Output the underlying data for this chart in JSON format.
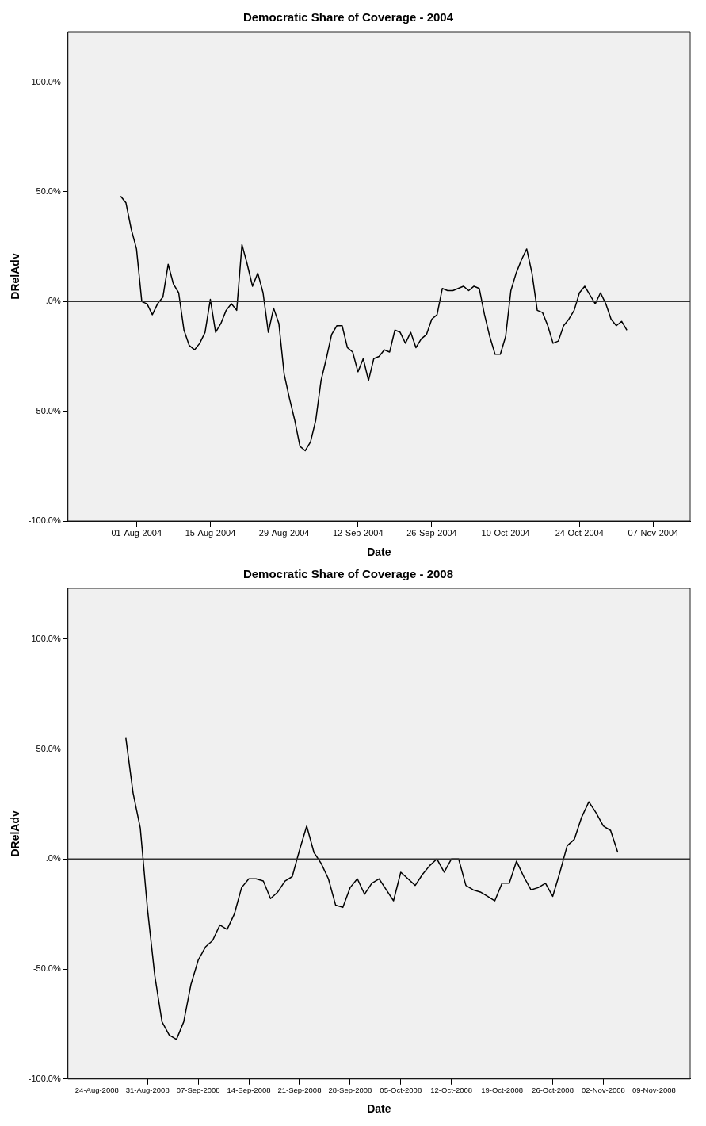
{
  "chart_data": [
    {
      "type": "line",
      "title": "Democratic Share of Coverage - 2004",
      "xlabel": "Date",
      "ylabel": "DRelAdv",
      "x": [
        "2004-07-29",
        "2004-07-30",
        "2004-07-31",
        "2004-08-01",
        "2004-08-02",
        "2004-08-03",
        "2004-08-04",
        "2004-08-05",
        "2004-08-06",
        "2004-08-07",
        "2004-08-08",
        "2004-08-09",
        "2004-08-10",
        "2004-08-11",
        "2004-08-12",
        "2004-08-13",
        "2004-08-14",
        "2004-08-15",
        "2004-08-16",
        "2004-08-17",
        "2004-08-18",
        "2004-08-19",
        "2004-08-20",
        "2004-08-21",
        "2004-08-22",
        "2004-08-23",
        "2004-08-24",
        "2004-08-25",
        "2004-08-26",
        "2004-08-27",
        "2004-08-28",
        "2004-08-29",
        "2004-08-30",
        "2004-08-31",
        "2004-09-01",
        "2004-09-02",
        "2004-09-03",
        "2004-09-04",
        "2004-09-05",
        "2004-09-06",
        "2004-09-07",
        "2004-09-08",
        "2004-09-09",
        "2004-09-10",
        "2004-09-11",
        "2004-09-12",
        "2004-09-13",
        "2004-09-14",
        "2004-09-15",
        "2004-09-16",
        "2004-09-17",
        "2004-09-18",
        "2004-09-19",
        "2004-09-20",
        "2004-09-21",
        "2004-09-22",
        "2004-09-23",
        "2004-09-24",
        "2004-09-25",
        "2004-09-26",
        "2004-09-27",
        "2004-09-28",
        "2004-09-29",
        "2004-09-30",
        "2004-10-01",
        "2004-10-02",
        "2004-10-03",
        "2004-10-04",
        "2004-10-05",
        "2004-10-06",
        "2004-10-07",
        "2004-10-08",
        "2004-10-09",
        "2004-10-10",
        "2004-10-11",
        "2004-10-12",
        "2004-10-13",
        "2004-10-14",
        "2004-10-15",
        "2004-10-16",
        "2004-10-17",
        "2004-10-18",
        "2004-10-19",
        "2004-10-20",
        "2004-10-21",
        "2004-10-22",
        "2004-10-23",
        "2004-10-24",
        "2004-10-25",
        "2004-10-26",
        "2004-10-27",
        "2004-10-28",
        "2004-10-29",
        "2004-10-30",
        "2004-10-31",
        "2004-11-01",
        "2004-11-02"
      ],
      "series": [
        {
          "color": "#000000",
          "values": [
            48,
            45,
            33,
            24,
            0,
            -1,
            -6,
            -1,
            2,
            17,
            8,
            4,
            -13,
            -20,
            -22,
            -19,
            -14,
            1,
            -14,
            -10,
            -4,
            -1,
            -4,
            26,
            17,
            7,
            13,
            4,
            -14,
            -3,
            -10,
            -33,
            -44,
            -54,
            -66,
            -68,
            -64,
            -54,
            -36,
            -26,
            -15,
            -11,
            -11,
            -21,
            -23,
            -32,
            -26,
            -36,
            -26,
            -25,
            -22,
            -23,
            -13,
            -14,
            -19,
            -14,
            -21,
            -17,
            -15,
            -8,
            -6,
            6,
            5,
            5,
            6,
            7,
            5,
            7,
            6,
            -6,
            -16,
            -24,
            -24,
            -16,
            5,
            13,
            19,
            24,
            13,
            -4,
            -5,
            -11,
            -19,
            -18,
            -11,
            -8,
            -4,
            4,
            7,
            3,
            -1,
            4,
            -1,
            -8,
            -11,
            -9,
            -13
          ]
        }
      ],
      "xlim": [
        "2004-07-19",
        "2004-11-14"
      ],
      "xticks": [
        {
          "value": "2004-08-01",
          "label": "01-Aug-2004"
        },
        {
          "value": "2004-08-15",
          "label": "15-Aug-2004"
        },
        {
          "value": "2004-08-29",
          "label": "29-Aug-2004"
        },
        {
          "value": "2004-09-12",
          "label": "12-Sep-2004"
        },
        {
          "value": "2004-09-26",
          "label": "26-Sep-2004"
        },
        {
          "value": "2004-10-10",
          "label": "10-Oct-2004"
        },
        {
          "value": "2004-10-24",
          "label": "24-Oct-2004"
        },
        {
          "value": "2004-11-07",
          "label": "07-Nov-2004"
        }
      ],
      "ylim": [
        -100,
        123
      ],
      "yticks": [
        {
          "value": -100,
          "label": "-100.0%"
        },
        {
          "value": -50,
          "label": "-50.0%"
        },
        {
          "value": 0,
          "label": ".0%"
        },
        {
          "value": 50,
          "label": "50.0%"
        },
        {
          "value": 100,
          "label": "100.0%"
        }
      ],
      "ref_lines": [
        {
          "axis": "y",
          "value": 0,
          "color": "#333333"
        }
      ]
    },
    {
      "type": "line",
      "title": "Democratic Share of Coverage - 2008",
      "xlabel": "Date",
      "ylabel": "DRelAdv",
      "x": [
        "2008-08-28",
        "2008-08-29",
        "2008-08-30",
        "2008-08-31",
        "2008-09-01",
        "2008-09-02",
        "2008-09-03",
        "2008-09-04",
        "2008-09-05",
        "2008-09-06",
        "2008-09-07",
        "2008-09-08",
        "2008-09-09",
        "2008-09-10",
        "2008-09-11",
        "2008-09-12",
        "2008-09-13",
        "2008-09-14",
        "2008-09-15",
        "2008-09-16",
        "2008-09-17",
        "2008-09-18",
        "2008-09-19",
        "2008-09-20",
        "2008-09-21",
        "2008-09-22",
        "2008-09-23",
        "2008-09-24",
        "2008-09-25",
        "2008-09-26",
        "2008-09-27",
        "2008-09-28",
        "2008-09-29",
        "2008-09-30",
        "2008-10-01",
        "2008-10-02",
        "2008-10-03",
        "2008-10-04",
        "2008-10-05",
        "2008-10-06",
        "2008-10-07",
        "2008-10-08",
        "2008-10-09",
        "2008-10-10",
        "2008-10-11",
        "2008-10-12",
        "2008-10-13",
        "2008-10-14",
        "2008-10-15",
        "2008-10-16",
        "2008-10-17",
        "2008-10-18",
        "2008-10-19",
        "2008-10-20",
        "2008-10-21",
        "2008-10-22",
        "2008-10-23",
        "2008-10-24",
        "2008-10-25",
        "2008-10-26",
        "2008-10-27",
        "2008-10-28",
        "2008-10-29",
        "2008-10-30",
        "2008-10-31",
        "2008-11-01",
        "2008-11-02",
        "2008-11-03",
        "2008-11-04"
      ],
      "series": [
        {
          "color": "#000000",
          "values": [
            55,
            30,
            14,
            -23,
            -53,
            -74,
            -80,
            -82,
            -74,
            -57,
            -46,
            -40,
            -37,
            -30,
            -32,
            -25,
            -13,
            -9,
            -9,
            -10,
            -18,
            -15,
            -10,
            -8,
            4,
            15,
            3,
            -2,
            -9,
            -21,
            -22,
            -13,
            -9,
            -16,
            -11,
            -9,
            -14,
            -19,
            -6,
            -9,
            -12,
            -7,
            -3,
            0,
            -6,
            0,
            0,
            -12,
            -14,
            -15,
            -17,
            -19,
            -11,
            -11,
            -1,
            -8,
            -14,
            -13,
            -11,
            -17,
            -6,
            6,
            9,
            19,
            26,
            21,
            15,
            13,
            3
          ]
        }
      ],
      "xlim": [
        "2008-08-20",
        "2008-11-14"
      ],
      "xticks": [
        {
          "value": "2008-08-24",
          "label": "24-Aug-2008"
        },
        {
          "value": "2008-08-31",
          "label": "31-Aug-2008"
        },
        {
          "value": "2008-09-07",
          "label": "07-Sep-2008"
        },
        {
          "value": "2008-09-14",
          "label": "14-Sep-2008"
        },
        {
          "value": "2008-09-21",
          "label": "21-Sep-2008"
        },
        {
          "value": "2008-09-28",
          "label": "28-Sep-2008"
        },
        {
          "value": "2008-10-05",
          "label": "05-Oct-2008"
        },
        {
          "value": "2008-10-12",
          "label": "12-Oct-2008"
        },
        {
          "value": "2008-10-19",
          "label": "19-Oct-2008"
        },
        {
          "value": "2008-10-26",
          "label": "26-Oct-2008"
        },
        {
          "value": "2008-11-02",
          "label": "02-Nov-2008"
        },
        {
          "value": "2008-11-09",
          "label": "09-Nov-2008"
        }
      ],
      "ylim": [
        -100,
        123
      ],
      "yticks": [
        {
          "value": -100,
          "label": "-100.0%"
        },
        {
          "value": -50,
          "label": "-50.0%"
        },
        {
          "value": 0,
          "label": ".0%"
        },
        {
          "value": 50,
          "label": "50.0%"
        },
        {
          "value": 100,
          "label": "100.0%"
        }
      ],
      "ref_lines": [
        {
          "axis": "y",
          "value": 0,
          "color": "#333333"
        }
      ]
    }
  ]
}
